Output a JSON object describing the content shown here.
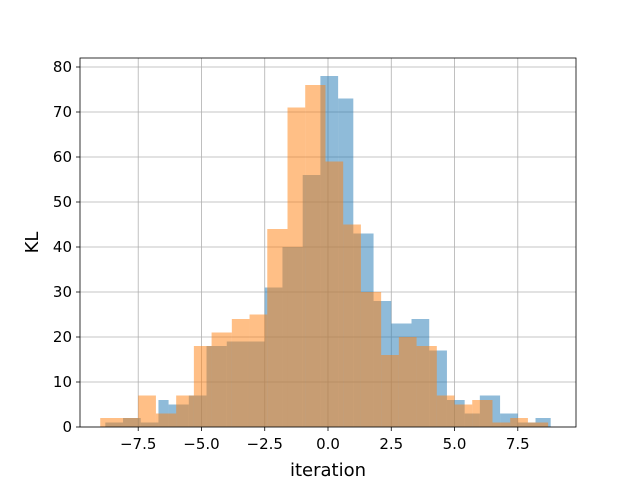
{
  "chart_data": {
    "type": "bar",
    "subtype": "overlapping-histogram",
    "title": "",
    "xlabel": "iteration",
    "ylabel": "KL",
    "xlim": [
      -9.8,
      9.8
    ],
    "ylim": [
      0,
      82
    ],
    "xticks": [
      -7.5,
      -5.0,
      -2.5,
      0.0,
      2.5,
      5.0,
      7.5
    ],
    "xtick_labels": [
      "−7.5",
      "−5.0",
      "−2.5",
      "0.0",
      "2.5",
      "5.0",
      "7.5"
    ],
    "yticks": [
      0,
      10,
      20,
      30,
      40,
      50,
      60,
      70,
      80
    ],
    "ytick_labels": [
      "0",
      "10",
      "20",
      "30",
      "40",
      "50",
      "60",
      "70",
      "80"
    ],
    "grid": true,
    "legend": "none",
    "series": [
      {
        "color": "#1f77b4",
        "opacity": 0.5,
        "bins": [
          [
            -8.8,
            -8.1,
            1
          ],
          [
            -8.1,
            -7.4,
            2
          ],
          [
            -7.4,
            -6.7,
            1
          ],
          [
            -6.7,
            -6.3,
            6
          ],
          [
            -6.3,
            -5.5,
            5
          ],
          [
            -5.5,
            -4.8,
            7
          ],
          [
            -4.8,
            -4.0,
            18
          ],
          [
            -4.0,
            -3.2,
            19
          ],
          [
            -3.2,
            -2.5,
            19
          ],
          [
            -2.5,
            -1.8,
            31
          ],
          [
            -1.8,
            -1.0,
            40
          ],
          [
            -1.0,
            -0.3,
            56
          ],
          [
            -0.3,
            0.4,
            78
          ],
          [
            0.4,
            1.0,
            73
          ],
          [
            1.0,
            1.8,
            43
          ],
          [
            1.8,
            2.5,
            28
          ],
          [
            2.5,
            3.3,
            23
          ],
          [
            3.3,
            4.0,
            24
          ],
          [
            4.0,
            4.7,
            17
          ],
          [
            4.7,
            5.4,
            6
          ],
          [
            5.4,
            6.0,
            3
          ],
          [
            6.0,
            6.8,
            7
          ],
          [
            6.8,
            7.5,
            3
          ],
          [
            7.5,
            8.2,
            1
          ],
          [
            8.2,
            8.8,
            2
          ]
        ]
      },
      {
        "color": "#ff7f0e",
        "opacity": 0.5,
        "bins": [
          [
            -9.0,
            -8.2,
            2
          ],
          [
            -8.2,
            -7.5,
            2
          ],
          [
            -7.5,
            -6.8,
            7
          ],
          [
            -6.8,
            -6.0,
            3
          ],
          [
            -6.0,
            -5.3,
            7
          ],
          [
            -5.3,
            -4.6,
            18
          ],
          [
            -4.6,
            -3.8,
            21
          ],
          [
            -3.8,
            -3.1,
            24
          ],
          [
            -3.1,
            -2.4,
            25
          ],
          [
            -2.4,
            -1.6,
            44
          ],
          [
            -1.6,
            -0.9,
            71
          ],
          [
            -0.9,
            -0.1,
            76
          ],
          [
            -0.1,
            0.6,
            59
          ],
          [
            0.6,
            1.3,
            45
          ],
          [
            1.3,
            2.1,
            30
          ],
          [
            2.1,
            2.8,
            16
          ],
          [
            2.8,
            3.5,
            20
          ],
          [
            3.5,
            4.3,
            18
          ],
          [
            4.3,
            5.0,
            7
          ],
          [
            5.0,
            5.7,
            5
          ],
          [
            5.7,
            6.5,
            6
          ],
          [
            6.5,
            7.2,
            1
          ],
          [
            7.2,
            7.9,
            2
          ],
          [
            7.9,
            8.7,
            1
          ]
        ]
      }
    ]
  }
}
